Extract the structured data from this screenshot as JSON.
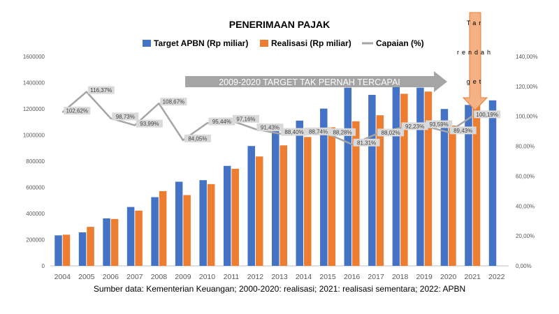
{
  "chart_data": {
    "type": "bar",
    "title": "PENERIMAAN PAJAK",
    "categories": [
      "2004",
      "2005",
      "2006",
      "2007",
      "2008",
      "2009",
      "2010",
      "2011",
      "2012",
      "2013",
      "2014",
      "2015",
      "2016",
      "2017",
      "2018",
      "2019",
      "2020",
      "2021",
      "2022"
    ],
    "series": [
      {
        "name": "Target APBN (Rp miliar)",
        "kind": "bar",
        "color": "#4472C4",
        "values": [
          233000,
          256000,
          363000,
          450000,
          525000,
          643000,
          655000,
          764000,
          916000,
          1036000,
          1110000,
          1202000,
          1362000,
          1307000,
          1368000,
          1362000,
          1199000,
          1230000,
          1265000
        ]
      },
      {
        "name": "Realisasi (Rp miliar)",
        "kind": "bar",
        "color": "#ED7D31",
        "values": [
          238000,
          298000,
          358000,
          422000,
          571000,
          541000,
          625000,
          742000,
          836000,
          921000,
          985000,
          1059000,
          1105000,
          1151000,
          1315000,
          1332000,
          1072000,
          1231000,
          null
        ]
      },
      {
        "name": "Capaian (%)",
        "kind": "line",
        "axis": "right",
        "color": "#A5A5A5",
        "values": [
          102.62,
          116.37,
          98.73,
          93.99,
          108.67,
          84.05,
          95.44,
          97.16,
          91.43,
          88.4,
          88.74,
          88.28,
          81.31,
          88.02,
          92.23,
          93.59,
          89.43,
          100.19,
          null
        ],
        "labels": [
          "102,62%",
          "116,37%",
          "98,73%",
          "93,99%",
          "108,67%",
          "84,05%",
          "95,44%",
          "97,16%",
          "91,43%",
          "88,40%",
          "88,74%",
          "88,28%",
          "81,31%",
          "88,02%",
          "92,23%",
          "93,59%",
          "89,43%",
          "100,19%",
          ""
        ]
      }
    ],
    "y_left": {
      "min": 0,
      "max": 1600000,
      "ticks": [
        "0",
        "200000",
        "400000",
        "600000",
        "800000",
        "1000000",
        "1200000",
        "1400000",
        "1600000"
      ]
    },
    "y_right": {
      "min": 0,
      "max": 140,
      "ticks": [
        "0,00%",
        "20,00%",
        "40,00%",
        "60,00%",
        "80,00%",
        "100,00%",
        "120,00%",
        "140,00%"
      ]
    },
    "annotations": {
      "arrow_text": "2009-2020 TARGET TAK PERNAH TERCAPAI",
      "target_arrow_lines": [
        "Tar",
        "rendah",
        "get"
      ]
    },
    "source": "Sumber data: Kementerian Keuangan; 2000-2020: realisasi; 2021: realisasi sementara; 2022: APBN",
    "colors": {
      "target": "#4472C4",
      "realisasi": "#ED7D31",
      "capaian": "#A5A5A5",
      "arrow_gray": "#A5A5A5",
      "arrow_orange": "#F4B183"
    }
  }
}
